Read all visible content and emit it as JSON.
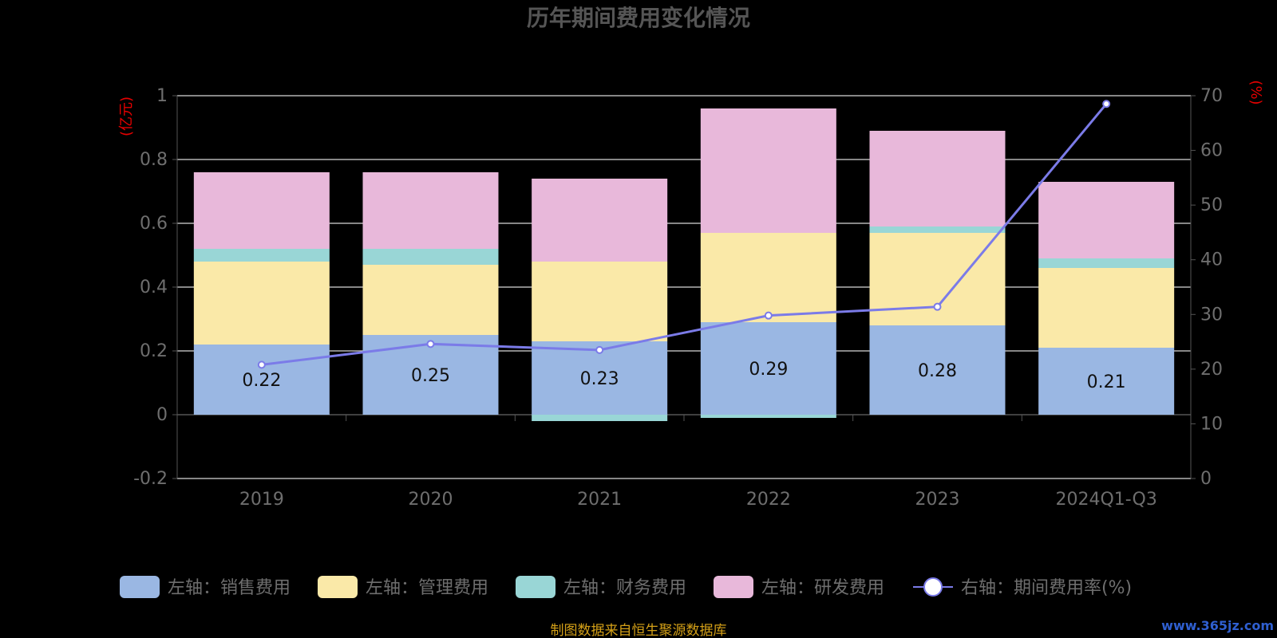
{
  "chart_data": {
    "type": "bar",
    "stacked": true,
    "title": "历年期间费用变化情况",
    "categories": [
      "2019",
      "2020",
      "2021",
      "2022",
      "2023",
      "2024Q1-Q3"
    ],
    "y_left": {
      "unit_label": "(亿元)",
      "ylim": [
        -0.2,
        1
      ],
      "ticks": [
        "-0.2",
        "0",
        "0.2",
        "0.4",
        "0.6",
        "0.8",
        "1"
      ]
    },
    "y_right": {
      "unit_label": "(%)",
      "ylim": [
        0,
        70
      ],
      "ticks": [
        "0",
        "10",
        "20",
        "30",
        "40",
        "50",
        "60",
        "70"
      ]
    },
    "series": [
      {
        "name": "左轴：销售费用",
        "axis": "left",
        "type": "bar",
        "color": "#9ab7e3",
        "values": [
          0.22,
          0.25,
          0.23,
          0.29,
          0.28,
          0.21
        ],
        "labels": [
          "0.22",
          "0.25",
          "0.23",
          "0.29",
          "0.28",
          "0.21"
        ]
      },
      {
        "name": "左轴：管理费用",
        "axis": "left",
        "type": "bar",
        "color": "#fae9a8",
        "values": [
          0.26,
          0.22,
          0.25,
          0.28,
          0.29,
          0.25
        ]
      },
      {
        "name": "左轴：财务费用",
        "axis": "left",
        "type": "bar",
        "color": "#99d6d6",
        "values": [
          0.04,
          0.05,
          -0.02,
          -0.01,
          0.02,
          0.03
        ]
      },
      {
        "name": "左轴：研发费用",
        "axis": "left",
        "type": "bar",
        "color": "#e8b8da",
        "values": [
          0.24,
          0.24,
          0.26,
          0.39,
          0.3,
          0.24
        ]
      },
      {
        "name": "右轴：期间费用率(%)",
        "axis": "right",
        "type": "line",
        "color": "#7b7be8",
        "values": [
          20.8,
          24.6,
          23.5,
          29.8,
          31.4,
          68.5
        ]
      }
    ],
    "grid": true,
    "legend_position": "bottom"
  },
  "footer": {
    "source": "制图数据来自恒生聚源数据库",
    "watermark": "www.365jz.com"
  }
}
